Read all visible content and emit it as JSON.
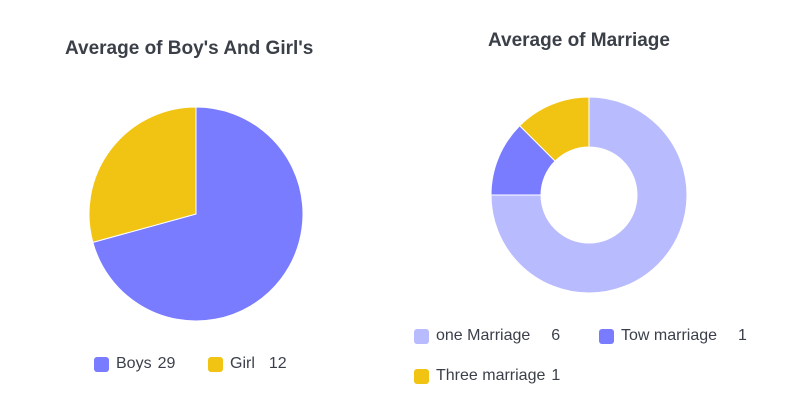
{
  "chart_data": [
    {
      "type": "pie",
      "title": "Average of Boy's And Girl's",
      "categories": [
        "Boys",
        "Girl"
      ],
      "values": [
        29,
        12
      ],
      "colors": [
        "#7a7cff",
        "#f1c414"
      ],
      "legend_position": "bottom",
      "legend_labels": [
        "Boys",
        "Girl"
      ],
      "legend_values": [
        "29",
        "12"
      ]
    },
    {
      "type": "pie",
      "subtype": "donut",
      "title": "Average of Marriage",
      "categories": [
        "one Marriage",
        "Tow marriage",
        "Three marriage"
      ],
      "values": [
        6,
        1,
        1
      ],
      "colors": [
        "#b9bbff",
        "#7a7cff",
        "#f1c414"
      ],
      "legend_position": "bottom",
      "legend_labels": [
        "one Marriage",
        "Tow marriage",
        "Three marriage"
      ],
      "legend_values": [
        "6",
        "1",
        "1"
      ]
    }
  ]
}
